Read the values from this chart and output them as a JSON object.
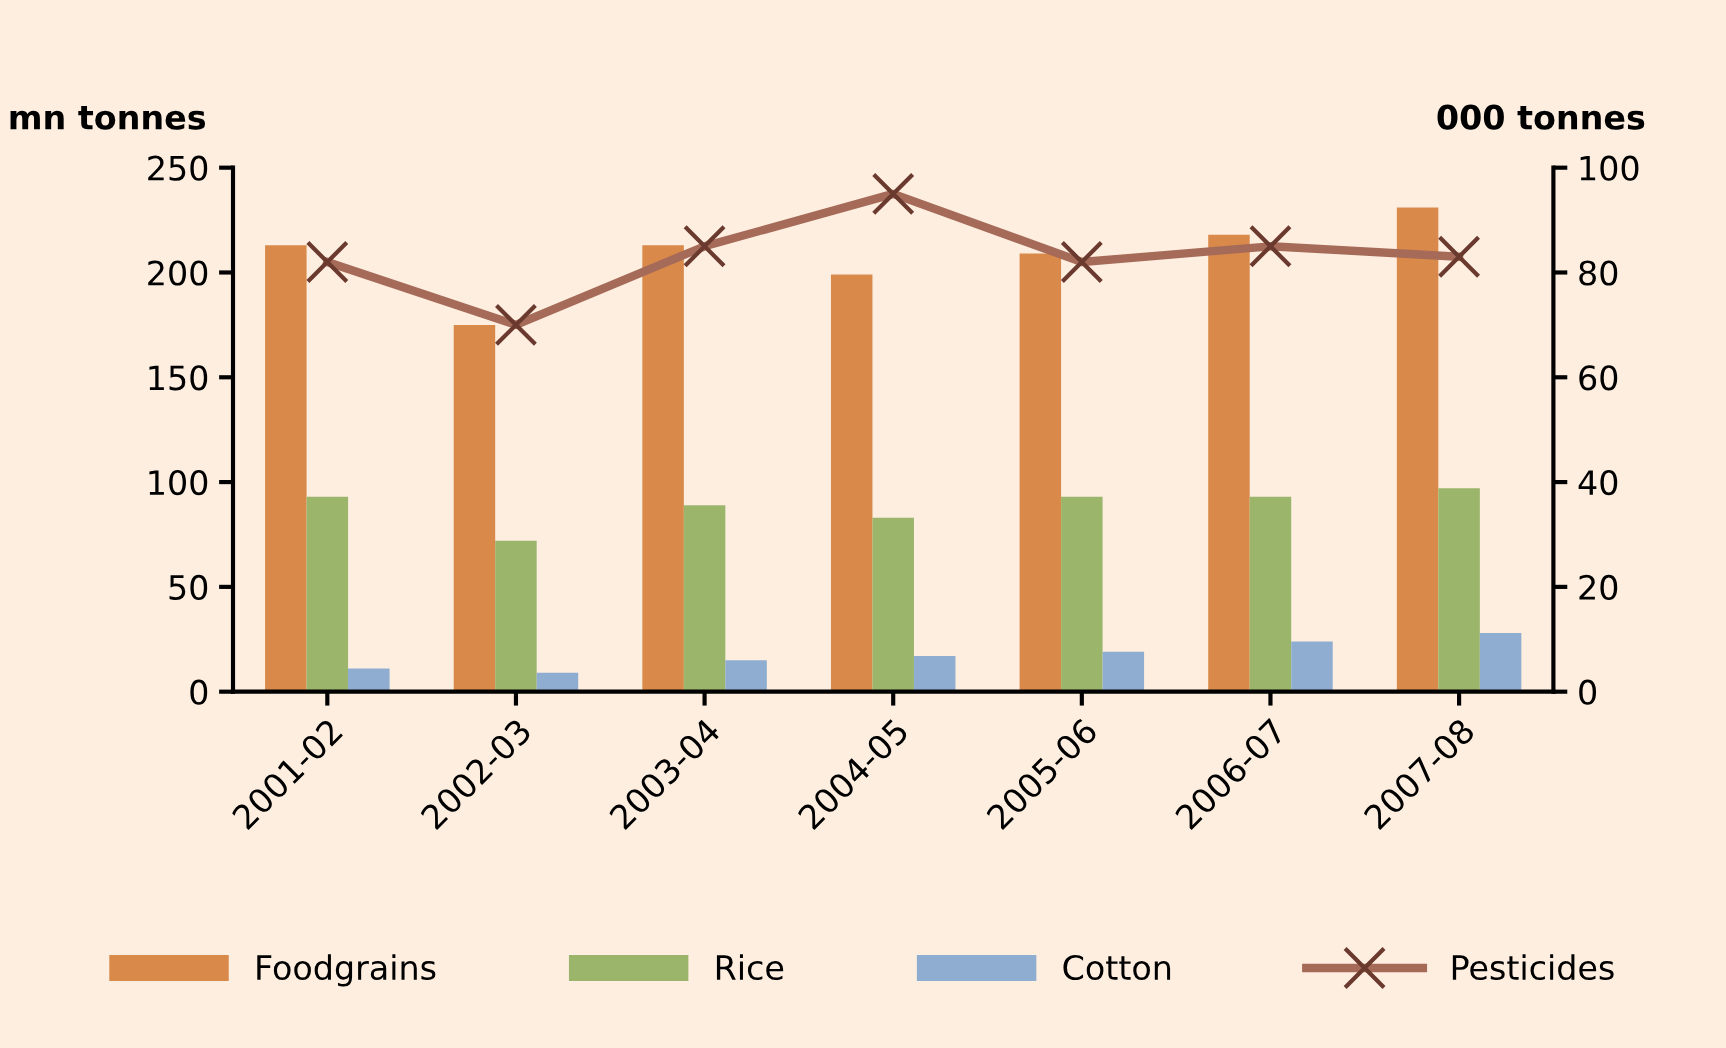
{
  "chart_data": {
    "type": "bar",
    "ylabel": "mn tonnes",
    "y2label": "000 tonnes",
    "categories": [
      "2001-02",
      "2002-03",
      "2003-04",
      "2004-05",
      "2005-06",
      "2006-07",
      "2007-08"
    ],
    "series": [
      {
        "name": "Foodgrains",
        "color": "#d9894a",
        "values": [
          213,
          175,
          213,
          199,
          209,
          218,
          231
        ]
      },
      {
        "name": "Rice",
        "color": "#9bb56a",
        "values": [
          93,
          72,
          89,
          83,
          93,
          93,
          97
        ]
      },
      {
        "name": "Cotton",
        "color": "#8fadd0",
        "values": [
          11,
          9,
          15,
          17,
          19,
          24,
          28
        ]
      },
      {
        "name": "Pesticides",
        "type": "line",
        "axis": "y2",
        "marker": "cross",
        "color": "#a56b58",
        "values": [
          82,
          70,
          85,
          95,
          82,
          85,
          83
        ]
      }
    ],
    "ylim": [
      0,
      250
    ],
    "yticks": [
      0,
      50,
      100,
      150,
      200,
      250
    ],
    "y2lim": [
      0,
      100
    ],
    "y2ticks": [
      0,
      20,
      40,
      60,
      80,
      100
    ],
    "grid": false,
    "legend": "bottom"
  }
}
